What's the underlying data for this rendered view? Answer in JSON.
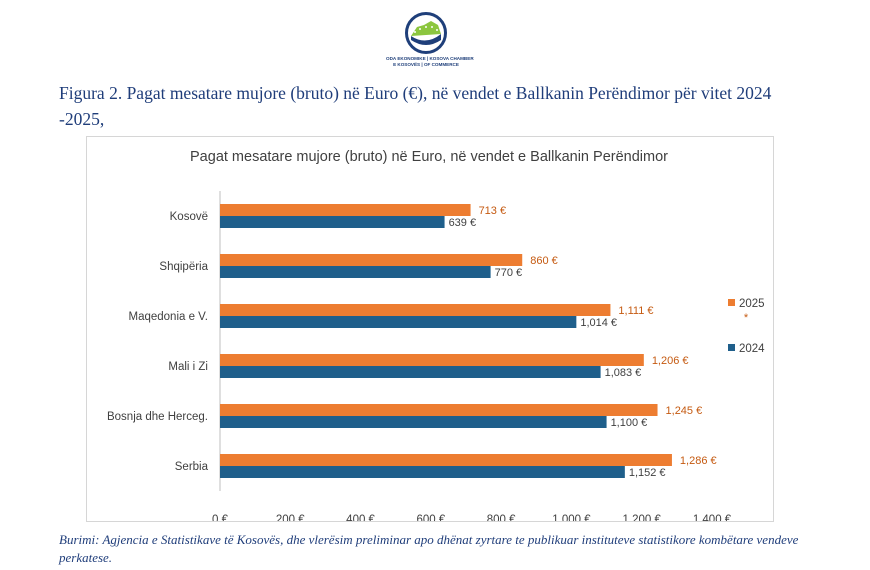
{
  "logo": {
    "line1": "ODA EKONOMIKE | KOSOVA CHAMBER",
    "line2": "E KOSOVËS | OF COMMERCE",
    "icon": "kosova-chamber-logo-icon",
    "colors": {
      "ring": "#1f3f7a",
      "accent": "#8cc63f"
    }
  },
  "figure": {
    "title": "Figura 2. Pagat mesatare mujore (bruto) në Euro (€), në vendet e Ballkanin Perëndimor për vitet 2024 -2025,"
  },
  "source": "Burimi: Agjencia e Statistikave të Kosovës, dhe vlerësim preliminar apo dhënat zyrtare te publikuar instituteve statistikore kombëtare vendeve perkatese.",
  "chart_data": {
    "type": "bar",
    "orientation": "horizontal",
    "title": "Pagat mesatare mujore (bruto) në Euro, në vendet e Ballkanin Perëndimor",
    "categories": [
      "Kosovë",
      "Shqipëria",
      "Maqedonia e V.",
      "Mali i Zi",
      "Bosnja dhe Herceg.",
      "Serbia"
    ],
    "series": [
      {
        "name": "2025",
        "name_mark": "*",
        "color": "#ed7d31",
        "values": [
          713,
          860,
          1111,
          1206,
          1245,
          1286
        ],
        "labels": [
          "713 €",
          "860 €",
          "1,111 €",
          "1,206 €",
          "1,245 €",
          "1,286 €"
        ]
      },
      {
        "name": "2024",
        "color": "#1f5f8b",
        "values": [
          639,
          770,
          1014,
          1083,
          1100,
          1152
        ],
        "labels": [
          "639 €",
          "770 €",
          "1,014 €",
          "1,083 €",
          "1,100 €",
          "1,152 €"
        ]
      }
    ],
    "xlim": [
      0,
      1400
    ],
    "xticks": [
      0,
      200,
      400,
      600,
      800,
      1000,
      1200,
      1400
    ],
    "xtick_labels": [
      "0 €",
      "200 €",
      "400 €",
      "600 €",
      "800 €",
      "1,000 €",
      "1,200 €",
      "1,400 €"
    ],
    "legend": "right",
    "grid": false
  }
}
